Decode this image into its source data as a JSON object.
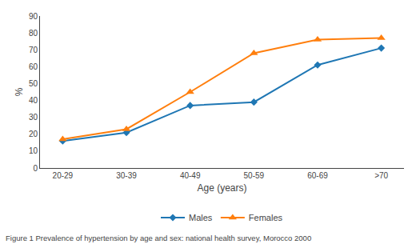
{
  "chart_data": {
    "type": "line",
    "x_label": "Age (years)",
    "y_label": "%",
    "annotations": [
      "Figure 1 Prevalence of hypertension by age and sex: national health survey, Morocco 2000"
    ],
    "categories": [
      "20-29",
      "30-39",
      "40-49",
      "50-59",
      "60-69",
      ">70"
    ],
    "series": [
      {
        "name": "Males",
        "values": [
          16,
          21,
          37,
          39,
          61,
          71
        ],
        "marker": "diamond"
      },
      {
        "name": "Females",
        "values": [
          17,
          23,
          45,
          68,
          76,
          77
        ],
        "marker": "triangle-up"
      }
    ],
    "ylim": [
      0,
      90
    ],
    "yticks": [
      0,
      10,
      20,
      30,
      40,
      50,
      60,
      70,
      80,
      90
    ],
    "grid": false,
    "legend": "bottom"
  }
}
